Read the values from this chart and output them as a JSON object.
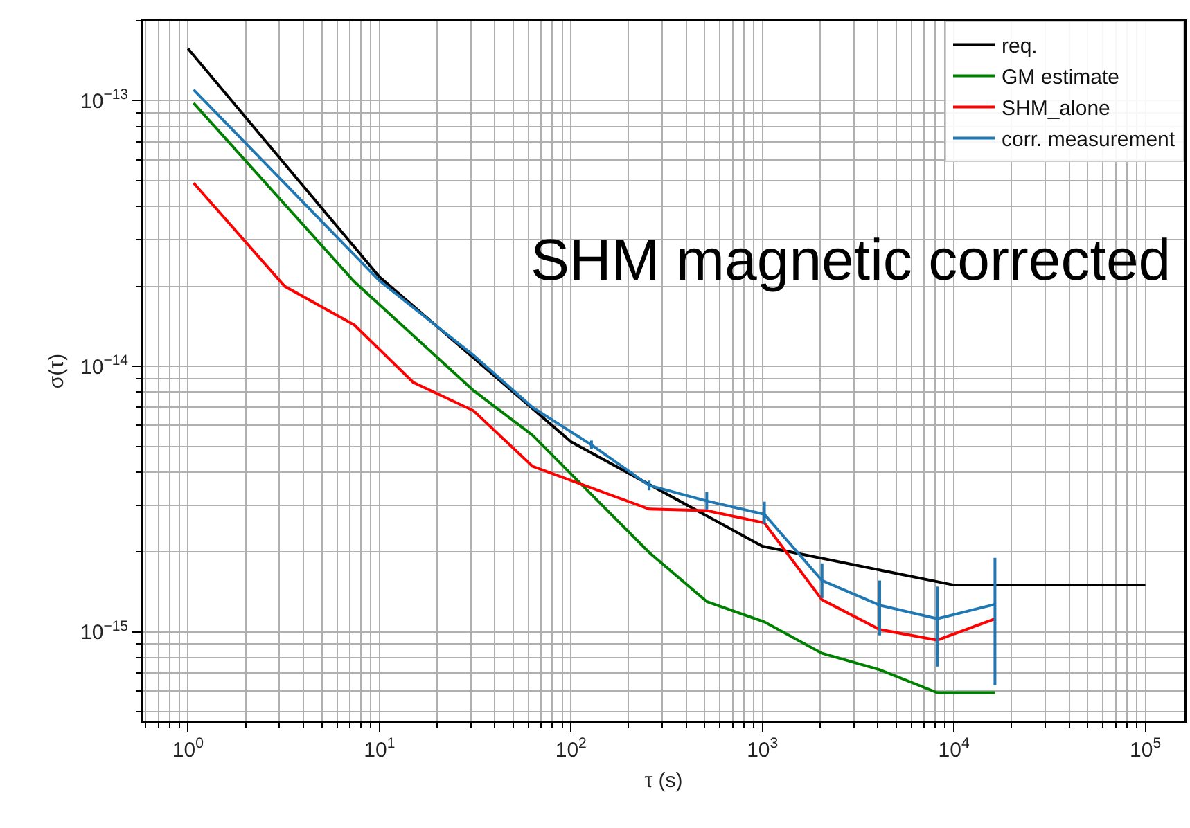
{
  "chart_data": {
    "type": "line",
    "xlabel": "τ (s)",
    "ylabel": "σ(τ)",
    "annotations": [
      "SHM magnetic corrected"
    ],
    "log": "xy",
    "grid": true,
    "legend": "top right",
    "marker": "none",
    "line_style": "solid",
    "xlim": [
      0.58,
      160000
    ],
    "ylim": [
      4.6e-16,
      2e-13
    ],
    "xticks": [
      {
        "value": 1,
        "label": "10$^{0}$"
      },
      {
        "value": 10,
        "label": "10$^{1}$"
      },
      {
        "value": 100,
        "label": "10$^{2}$"
      },
      {
        "value": 1000,
        "label": "10$^{3}$"
      },
      {
        "value": 10000,
        "label": "10$^{4}$"
      },
      {
        "value": 100000,
        "label": "10$^{5}$"
      }
    ],
    "yticks": [
      {
        "value": 1e-15,
        "label": "10$^{−15}$"
      },
      {
        "value": 1e-14,
        "label": "10$^{−14}$"
      },
      {
        "value": 1e-13,
        "label": "10$^{−13}$"
      }
    ],
    "series": [
      {
        "name": "req.",
        "color": "#000000",
        "x": [
          1,
          10,
          100,
          1000,
          10000,
          100000
        ],
        "values": [
          1.57e-13,
          2.17e-14,
          5.2e-15,
          2.1e-15,
          1.5e-15,
          1.5e-15
        ]
      },
      {
        "name": "GM estimate",
        "color": "#008000",
        "x": [
          1.07,
          7.4,
          31,
          63,
          256,
          512,
          1024,
          2048,
          4096,
          8192,
          16384
        ],
        "values": [
          9.8e-14,
          2.08e-14,
          8.1e-15,
          5.5e-15,
          1.99e-15,
          1.3e-15,
          1.09e-15,
          8.3e-16,
          7.2e-16,
          5.9e-16,
          5.9e-16
        ]
      },
      {
        "name": "SHM_alone",
        "color": "#ff0000",
        "x": [
          1.07,
          3.2,
          7.4,
          15,
          31,
          63,
          256,
          512,
          1024,
          2048,
          4096,
          8192,
          16384
        ],
        "values": [
          4.9e-14,
          2e-14,
          1.43e-14,
          8.7e-15,
          6.8e-15,
          4.2e-15,
          2.9e-15,
          2.86e-15,
          2.57e-15,
          1.32e-15,
          1.02e-15,
          9.3e-16,
          1.12e-15
        ]
      },
      {
        "name": "corr. measurement",
        "color": "#1f77b4",
        "x": [
          1.07,
          10,
          31,
          63,
          128,
          256,
          512,
          1024,
          2048,
          4096,
          8192,
          16384
        ],
        "values": [
          1.1e-13,
          2.1e-14,
          1.1e-14,
          7e-15,
          5.06e-15,
          3.56e-15,
          3.11e-15,
          2.77e-15,
          1.56e-15,
          1.26e-15,
          1.12e-15,
          1.27e-15
        ],
        "errors": [
          null,
          null,
          null,
          null,
          [
            4.88e-15,
            5.25e-15
          ],
          [
            3.41e-15,
            3.71e-15
          ],
          [
            2.89e-15,
            3.36e-15
          ],
          [
            2.55e-15,
            3.09e-15
          ],
          [
            1.34e-15,
            1.81e-15
          ],
          [
            9.7e-16,
            1.56e-15
          ],
          [
            7.4e-16,
            1.48e-15
          ],
          [
            6.3e-16,
            1.9e-15
          ]
        ]
      }
    ]
  }
}
